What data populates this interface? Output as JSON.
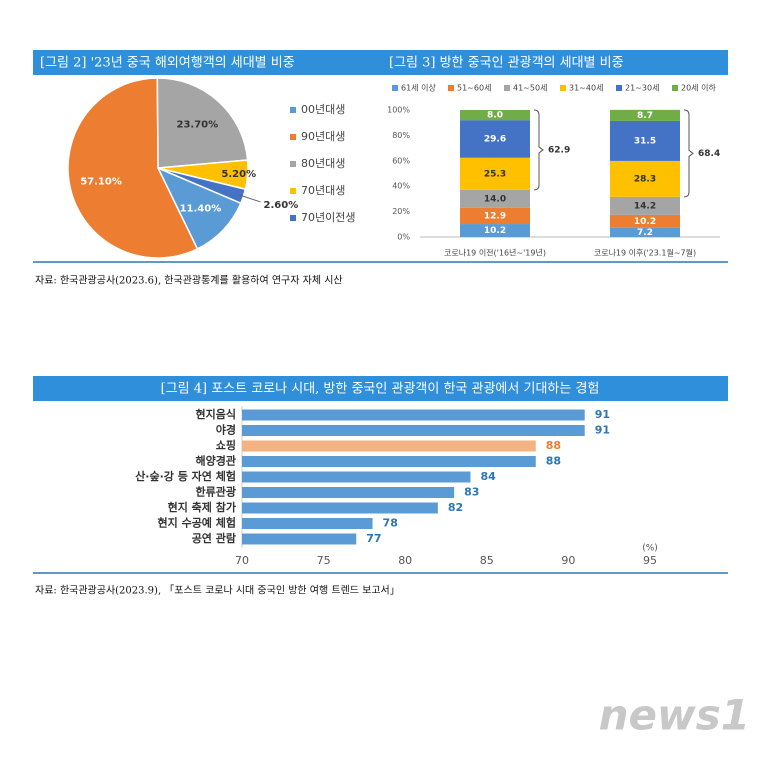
{
  "chart_data": [
    {
      "type": "pie",
      "title": "[그림 2] '23년 중국 해외여행객의 세대별 비중",
      "categories": [
        "00년대생",
        "90년대생",
        "80년대생",
        "70년대생",
        "70년이전생"
      ],
      "values": [
        11.4,
        57.1,
        23.7,
        5.2,
        2.6
      ],
      "value_labels": [
        "11.40%",
        "57.10%",
        "23.70%",
        "5.20%",
        "2.60%"
      ],
      "colors": [
        "#5b9bd5",
        "#ed7d31",
        "#a5a5a5",
        "#ffc000",
        "#4472c4"
      ],
      "legend": "right"
    },
    {
      "type": "stacked_bar",
      "title": "[그림 3] 방한 중국인 관광객의 세대별 비중",
      "categories": [
        "코로나19 이전('16년~'19년)",
        "코로나19 이후('23.1월~7월)"
      ],
      "series": [
        {
          "name": "61세 이상",
          "color": "#5b9bd5",
          "values": [
            10.2,
            7.2
          ]
        },
        {
          "name": "51~60세",
          "color": "#ed7d31",
          "values": [
            12.9,
            10.2
          ]
        },
        {
          "name": "41~50세",
          "color": "#a5a5a5",
          "values": [
            14.0,
            14.2
          ],
          "value_labels": [
            "14.0",
            "14.2"
          ]
        },
        {
          "name": "31~40세",
          "color": "#ffc000",
          "values": [
            25.3,
            28.3
          ]
        },
        {
          "name": "21~30세",
          "color": "#4472c4",
          "values": [
            29.6,
            31.5
          ]
        },
        {
          "name": "20세 이하",
          "color": "#70ad47",
          "values": [
            8.0,
            8.7
          ],
          "value_labels": [
            "8.0",
            "8.7"
          ]
        }
      ],
      "ylim": [
        0,
        100
      ],
      "yticks": [
        {
          "value": 0,
          "label": "0%"
        },
        {
          "value": 20,
          "label": "20%"
        },
        {
          "value": 40,
          "label": "40%"
        },
        {
          "value": 60,
          "label": "60%"
        },
        {
          "value": 80,
          "label": "80%"
        },
        {
          "value": 100,
          "label": "100%"
        }
      ],
      "annotations": [
        62.9,
        68.4
      ],
      "legend": "top"
    },
    {
      "type": "hbar",
      "title": "[그림 4] 포스트 코로나 시대, 방한 중국인 관광객이 한국 관광에서 기대하는 경험",
      "categories": [
        "현지음식",
        "야경",
        "쇼핑",
        "해양경관",
        "산·숲·강 등 자연 체험",
        "한류관광",
        "현지 축제 참가",
        "현지 수공예 체험",
        "공연 관람"
      ],
      "values": [
        91,
        91,
        88,
        88,
        84,
        83,
        82,
        78,
        77
      ],
      "colors": [
        "#5b9bd5",
        "#5b9bd5",
        "#f4b183",
        "#5b9bd5",
        "#5b9bd5",
        "#5b9bd5",
        "#5b9bd5",
        "#5b9bd5",
        "#5b9bd5"
      ],
      "label_colors": [
        "#2e75b6",
        "#2e75b6",
        "#ed7d31",
        "#2e75b6",
        "#2e75b6",
        "#2e75b6",
        "#2e75b6",
        "#2e75b6",
        "#2e75b6"
      ],
      "xlim": [
        70,
        95
      ],
      "xticks": [
        70,
        75,
        80,
        85,
        90,
        95
      ],
      "xlabel": "(%)"
    }
  ],
  "sources": [
    "자료: 한국관광공사(2023.6), 한국관광통계를 활용하여 연구자 자체 시산",
    "자료: 한국관광공사(2023.9), 「포스트 코로나 시대 중국인 방한 여행 트렌드 보고서」"
  ],
  "watermark": "news1"
}
